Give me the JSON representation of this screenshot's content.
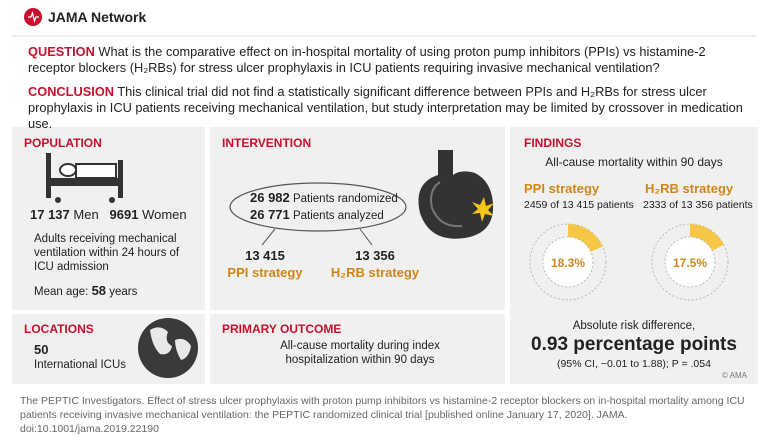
{
  "header": {
    "brand": "JAMA Network"
  },
  "question": {
    "label": "QUESTION",
    "text": "What is the comparative effect on in-hospital mortality of using proton pump inhibitors (PPIs) vs histamine-2 receptor blockers (H₂RBs) for stress ulcer prophylaxis in ICU patients requiring invasive mechanical ventilation?"
  },
  "conclusion": {
    "label": "CONCLUSION",
    "text": "This clinical trial did not find a statistically significant difference between PPIs and H₂RBs for stress ulcer prophylaxis in ICU patients receiving mechanical ventilation, but study interpretation may be limited by crossover in medication use."
  },
  "population": {
    "heading": "POPULATION",
    "men": {
      "count": "17 137",
      "label": "Men"
    },
    "women": {
      "count": "9691",
      "label": "Women"
    },
    "description": "Adults receiving mechanical ventilation within 24 hours of ICU admission",
    "mean_age": {
      "label": "Mean age:",
      "value": "58",
      "unit": "years"
    }
  },
  "locations": {
    "heading": "LOCATIONS",
    "count": "50",
    "label": "International ICUs"
  },
  "intervention": {
    "heading": "INTERVENTION",
    "randomized": {
      "count": "26 982",
      "label": "Patients randomized"
    },
    "analyzed": {
      "count": "26 771",
      "label": "Patients analyzed"
    },
    "arms": [
      {
        "count": "13 415",
        "label": "PPI strategy"
      },
      {
        "count": "13 356",
        "label": "H₂RB strategy"
      }
    ]
  },
  "primary_outcome": {
    "heading": "PRIMARY OUTCOME",
    "text": "All-cause mortality during index hospitalization within 90 days"
  },
  "findings": {
    "heading": "FINDINGS",
    "subtitle": "All-cause mortality within 90 days",
    "groups": [
      {
        "name": "PPI strategy",
        "detail": "2459 of 13 415 patients",
        "percent": {
          "value": 18.3,
          "label": "18.3%"
        }
      },
      {
        "name": "H₂RB strategy",
        "detail": "2333 of 13 356 patients",
        "percent": {
          "value": 17.5,
          "label": "17.5%"
        }
      }
    ],
    "risk_difference": {
      "label": "Absolute risk difference,",
      "value": "0.93 percentage points",
      "ci": "(95% CI, −0.01 to 1.88); P = .054"
    }
  },
  "copyright": "© AMA",
  "citation": "The PEPTIC Investigators. Effect of stress ulcer prophylaxis with proton pump inhibitors vs histamine-2 receptor blockers on in-hospital mortality among ICU patients receiving invasive mechanical ventilation: the PEPTIC randomized clinical trial [published online January 17, 2020]. JAMA. doi:10.1001/jama.2019.22190"
}
